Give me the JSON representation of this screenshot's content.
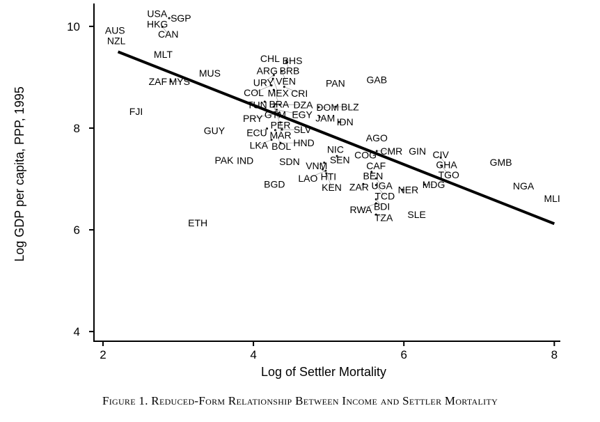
{
  "chart_data": {
    "type": "scatter",
    "title": "",
    "xlabel": "Log of Settler Mortality",
    "ylabel": "Log GDP per capita, PPP, 1995",
    "xlim": [
      1.88,
      8.08
    ],
    "ylim": [
      3.81,
      10.45
    ],
    "xticks": [
      2,
      4,
      6,
      8
    ],
    "yticks": [
      4,
      6,
      8,
      10
    ],
    "grid": false,
    "fit_line": {
      "x": [
        2.2,
        8.0
      ],
      "y": [
        9.5,
        6.12
      ]
    },
    "points": [
      {
        "label": "USA",
        "x": 2.72,
        "y": 10.25
      },
      {
        "label": "HKG",
        "x": 2.69,
        "y": 10.07
      },
      {
        "label": "SGP",
        "x": 2.88,
        "y": 10.16
      },
      {
        "label": "CAN",
        "x": 2.79,
        "y": 9.99
      },
      {
        "label": "AUS",
        "x": 2.16,
        "y": 9.92
      },
      {
        "label": "NZL",
        "x": 2.15,
        "y": 9.75
      },
      {
        "label": "MLT",
        "x": 2.8,
        "y": 9.45
      },
      {
        "label": "ZAF",
        "x": 2.73,
        "y": 8.92
      },
      {
        "label": "MYS",
        "x": 2.9,
        "y": 8.92
      },
      {
        "label": "MUS",
        "x": 3.42,
        "y": 9.08
      },
      {
        "label": "FJI",
        "x": 2.44,
        "y": 8.33
      },
      {
        "label": "GUY",
        "x": 3.48,
        "y": 7.95
      },
      {
        "label": "PAK",
        "x": 3.61,
        "y": 7.37
      },
      {
        "label": "IND",
        "x": 3.89,
        "y": 7.36
      },
      {
        "label": "ETH",
        "x": 3.26,
        "y": 6.14
      },
      {
        "label": "BGD",
        "x": 4.28,
        "y": 6.9
      },
      {
        "label": "SDN",
        "x": 4.48,
        "y": 7.34
      },
      {
        "label": "CHL",
        "x": 4.22,
        "y": 9.37
      },
      {
        "label": "BHS",
        "x": 4.44,
        "y": 9.33
      },
      {
        "label": "BRB",
        "x": 4.44,
        "y": 9.29
      },
      {
        "label": "ARG",
        "x": 4.21,
        "y": 9.16
      },
      {
        "label": "VEN",
        "x": 4.38,
        "y": 9.12
      },
      {
        "label": "URY",
        "x": 4.27,
        "y": 9.04
      },
      {
        "label": "MEX",
        "x": 4.26,
        "y": 8.97
      },
      {
        "label": "COL",
        "x": 4.24,
        "y": 8.84
      },
      {
        "label": "CRI",
        "x": 4.41,
        "y": 8.81
      },
      {
        "label": "BRA",
        "x": 4.27,
        "y": 8.75
      },
      {
        "label": "TUN",
        "x": 4.15,
        "y": 8.52
      },
      {
        "label": "GTM",
        "x": 4.29,
        "y": 8.47
      },
      {
        "label": "PER",
        "x": 4.27,
        "y": 8.42
      },
      {
        "label": "DZA",
        "x": 4.35,
        "y": 8.46
      },
      {
        "label": "EGY",
        "x": 4.31,
        "y": 8.36
      },
      {
        "label": "PRY",
        "x": 4.33,
        "y": 8.29
      },
      {
        "label": "MAR",
        "x": 4.36,
        "y": 8.11
      },
      {
        "label": "ECU",
        "x": 4.18,
        "y": 7.99
      },
      {
        "label": "BOL",
        "x": 4.29,
        "y": 7.96
      },
      {
        "label": "SLV",
        "x": 4.38,
        "y": 7.97
      },
      {
        "label": "LKA",
        "x": 4.24,
        "y": 7.77
      },
      {
        "label": "HND",
        "x": 4.36,
        "y": 7.71
      },
      {
        "label": "PAN",
        "x": 5.09,
        "y": 8.88
      },
      {
        "label": "GAB",
        "x": 5.64,
        "y": 8.95
      },
      {
        "label": "DOM",
        "x": 4.87,
        "y": 8.41
      },
      {
        "label": "BLZ",
        "x": 5.09,
        "y": 8.42
      },
      {
        "label": "JAM",
        "x": 4.88,
        "y": 8.22
      },
      {
        "label": "IDN",
        "x": 5.14,
        "y": 8.12
      },
      {
        "label": "AGO",
        "x": 5.64,
        "y": 7.81
      },
      {
        "label": "NIC",
        "x": 5.09,
        "y": 7.58
      },
      {
        "label": "SEN",
        "x": 5.11,
        "y": 7.45
      },
      {
        "label": "VNM",
        "x": 4.94,
        "y": 7.32
      },
      {
        "label": "HTI",
        "x": 4.92,
        "y": 7.19
      },
      {
        "label": "LAO",
        "x": 4.96,
        "y": 7.16
      },
      {
        "label": "KEN",
        "x": 4.97,
        "y": 7.11
      },
      {
        "label": "COG",
        "x": 5.49,
        "y": 7.47
      },
      {
        "label": "CMR",
        "x": 5.64,
        "y": 7.55
      },
      {
        "label": "CAF",
        "x": 5.63,
        "y": 7.26
      },
      {
        "label": "BEN",
        "x": 5.57,
        "y": 7.14
      },
      {
        "label": "UGA",
        "x": 5.63,
        "y": 7.01
      },
      {
        "label": "ZAR",
        "x": 5.46,
        "y": 6.9
      },
      {
        "label": "TCD",
        "x": 5.63,
        "y": 6.88
      },
      {
        "label": "BDI",
        "x": 5.63,
        "y": 6.6
      },
      {
        "label": "RWA",
        "x": 5.63,
        "y": 6.52
      },
      {
        "label": "TZA",
        "x": 5.63,
        "y": 6.3
      },
      {
        "label": "NER",
        "x": 5.98,
        "y": 6.79
      },
      {
        "label": "MDG",
        "x": 6.28,
        "y": 6.89
      },
      {
        "label": "SLE",
        "x": 6.17,
        "y": 6.3
      },
      {
        "label": "GIN",
        "x": 6.18,
        "y": 7.55
      },
      {
        "label": "CIV",
        "x": 6.49,
        "y": 7.48
      },
      {
        "label": "GHA",
        "x": 6.49,
        "y": 7.42
      },
      {
        "label": "TGO",
        "x": 6.5,
        "y": 7.26
      },
      {
        "label": "GMB",
        "x": 7.29,
        "y": 7.33
      },
      {
        "label": "NGA",
        "x": 7.59,
        "y": 6.86
      },
      {
        "label": "MLI",
        "x": 7.97,
        "y": 6.62
      }
    ]
  },
  "caption": "Figure 1. Reduced-Form Relationship Between Income and Settler Mortality"
}
